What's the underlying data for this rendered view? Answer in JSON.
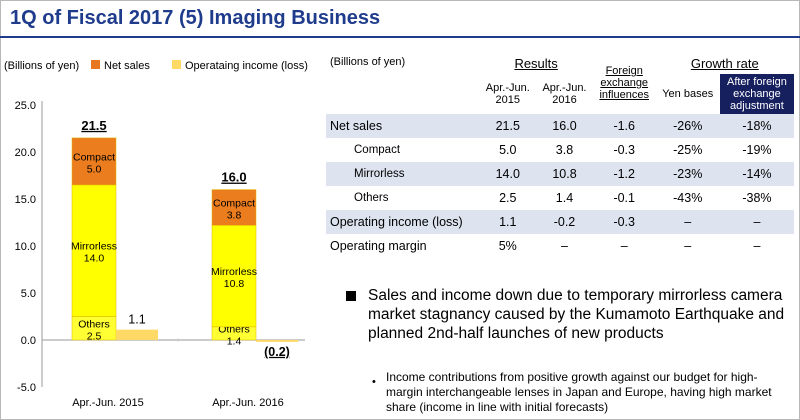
{
  "title": "1Q of Fiscal 2017 (5) Imaging Business",
  "chart_data": {
    "type": "bar",
    "unit_label": "(Billions of yen)",
    "legend": [
      {
        "name": "Net sales",
        "color": "#e87722"
      },
      {
        "name": "Operataing income (loss)",
        "color": "#ffd966"
      }
    ],
    "ylim": [
      -5,
      25
    ],
    "yticks": [
      "25.0",
      "20.0",
      "15.0",
      "10.0",
      "5.0",
      "0.0",
      "-5.0"
    ],
    "categories": [
      "Apr.-Jun. 2015",
      "Apr.-Jun. 2016"
    ],
    "stack_series": [
      {
        "name": "Others",
        "values": [
          2.5,
          1.4
        ],
        "color": "#ffff33",
        "labels": [
          "2.5",
          "1.4"
        ]
      },
      {
        "name": "Mirrorless",
        "values": [
          14.0,
          10.8
        ],
        "color": "#ffff00",
        "labels": [
          "14.0",
          "10.8"
        ]
      },
      {
        "name": "Compact",
        "values": [
          5.0,
          3.8
        ],
        "color": "#ec7d1f",
        "labels": [
          "5.0",
          "3.8"
        ]
      }
    ],
    "net_sales_totals": [
      "21.5",
      "16.0"
    ],
    "operating_income": {
      "values": [
        1.1,
        -0.2
      ],
      "labels": [
        "1.1",
        "(0.2)"
      ],
      "color": "#ffd966"
    }
  },
  "table": {
    "unit_label": "(Billions of yen)",
    "group_results": "Results",
    "group_growth": "Growth rate",
    "col_2015": [
      "Apr.-Jun.",
      "2015"
    ],
    "col_2016": [
      "Apr.-Jun.",
      "2016"
    ],
    "col_fx": [
      "Foreign",
      "exchange",
      "influences"
    ],
    "col_yen": "Yen bases",
    "col_after": [
      "After foreign",
      "exchange",
      "adjustment"
    ],
    "rows": [
      {
        "label": "Net sales",
        "sub": false,
        "v2015": "21.5",
        "v2016": "16.0",
        "fx": "-1.6",
        "yen": "-26%",
        "after": "-18%"
      },
      {
        "label": "Compact",
        "sub": true,
        "v2015": "5.0",
        "v2016": "3.8",
        "fx": "-0.3",
        "yen": "-25%",
        "after": "-19%"
      },
      {
        "label": "Mirrorless",
        "sub": true,
        "v2015": "14.0",
        "v2016": "10.8",
        "fx": "-1.2",
        "yen": "-23%",
        "after": "-14%"
      },
      {
        "label": "Others",
        "sub": true,
        "v2015": "2.5",
        "v2016": "1.4",
        "fx": "-0.1",
        "yen": "-43%",
        "after": "-38%"
      },
      {
        "label": "Operating income (loss)",
        "sub": false,
        "v2015": "1.1",
        "v2016": "-0.2",
        "fx": "-0.3",
        "yen": "–",
        "after": "–"
      },
      {
        "label": "Operating margin",
        "sub": false,
        "v2015": "5%",
        "v2016": "–",
        "fx": "–",
        "yen": "–",
        "after": "–"
      }
    ]
  },
  "bullets": {
    "main": "Sales and income down due to temporary mirrorless camera market stagnancy caused by the Kumamoto Earthquake and planned 2nd-half launches of new products",
    "sub": "Income contributions from positive growth against our budget for high-margin interchangeable lenses in Japan and Europe, having high market share (income in line with initial forecasts)"
  }
}
